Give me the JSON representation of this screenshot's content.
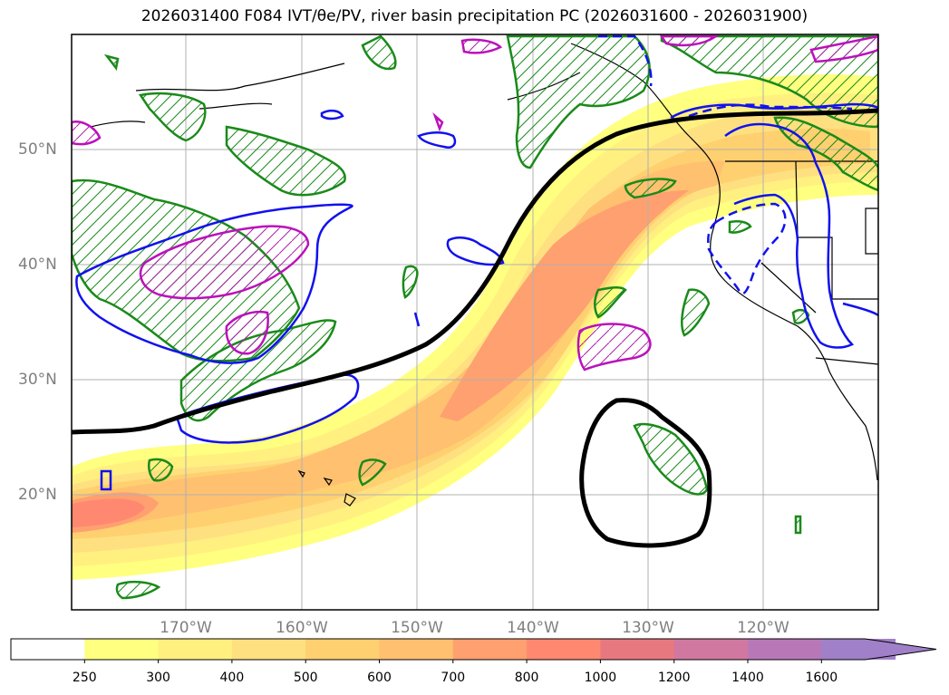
{
  "title": "2026031400 F084 IVT/θe/PV, river basin precipitation PC (2026031600 - 2026031900)",
  "map": {
    "lat_labels": [
      "50°N",
      "40°N",
      "30°N",
      "20°N"
    ],
    "lon_labels": [
      "170°W",
      "160°W",
      "150°W",
      "140°W",
      "130°W",
      "120°W"
    ]
  },
  "colorbar": {
    "ticks": [
      "250",
      "300",
      "400",
      "500",
      "600",
      "700",
      "800",
      "1000",
      "1200",
      "1400",
      "1600"
    ],
    "colors": [
      "#ffffff",
      "#ffff80",
      "#fff080",
      "#ffe080",
      "#ffd070",
      "#ffc070",
      "#ffa070",
      "#ff8870",
      "#e87880",
      "#d078a0",
      "#b878b8",
      "#a080c8"
    ]
  }
}
